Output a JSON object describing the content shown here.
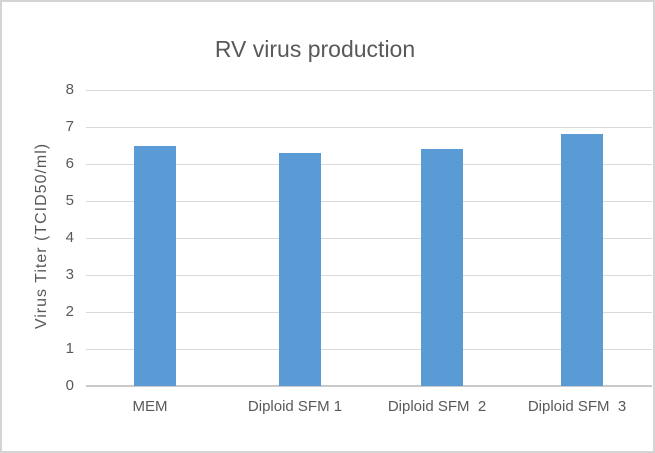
{
  "chart_data": {
    "type": "bar",
    "title": "RV virus production",
    "categories": [
      "MEM",
      "Diploid SFM 1",
      "Diploid SFM  2",
      "Diploid SFM  3"
    ],
    "values": [
      6.5,
      6.3,
      6.4,
      6.8
    ],
    "xlabel": "",
    "ylabel": "Virus Titer (TCID50/ml)",
    "ylim": [
      0,
      8
    ],
    "yticks": [
      0,
      1,
      2,
      3,
      4,
      5,
      6,
      7,
      8
    ],
    "grid": true,
    "legend": "none",
    "bar_color": "#5B9BD5",
    "gridline_color": "#D9D9D9",
    "axis_line_color": "#C9C9C9",
    "text_color": "#595959",
    "background_color": "#FFFFFF",
    "frame_border_color": "#D4D4D4"
  }
}
